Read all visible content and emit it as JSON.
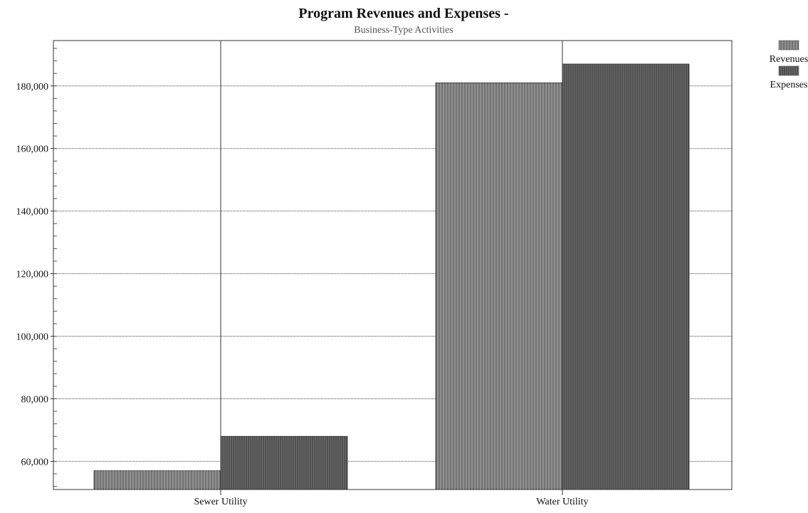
{
  "chart_data": {
    "type": "bar",
    "title": "Program Revenues and Expenses -",
    "subtitle": "Business-Type Activities",
    "xlabel": "",
    "ylabel": "",
    "categories": [
      "Sewer Utility",
      "Water Utility"
    ],
    "series": [
      {
        "name": "Revenues",
        "values": [
          57000,
          181000
        ],
        "color": "#8a8a8a"
      },
      {
        "name": "Expenses",
        "values": [
          68000,
          187000
        ],
        "color": "#5f5f5f"
      }
    ],
    "ylim": [
      51000,
      194500
    ],
    "yticks": [
      60000,
      80000,
      100000,
      120000,
      140000,
      160000,
      180000
    ],
    "ytick_labels": [
      "60,000",
      "80,000",
      "100,000",
      "120,000",
      "140,000",
      "160,000",
      "180,000"
    ],
    "grid": true,
    "legend_position": "top-right"
  }
}
